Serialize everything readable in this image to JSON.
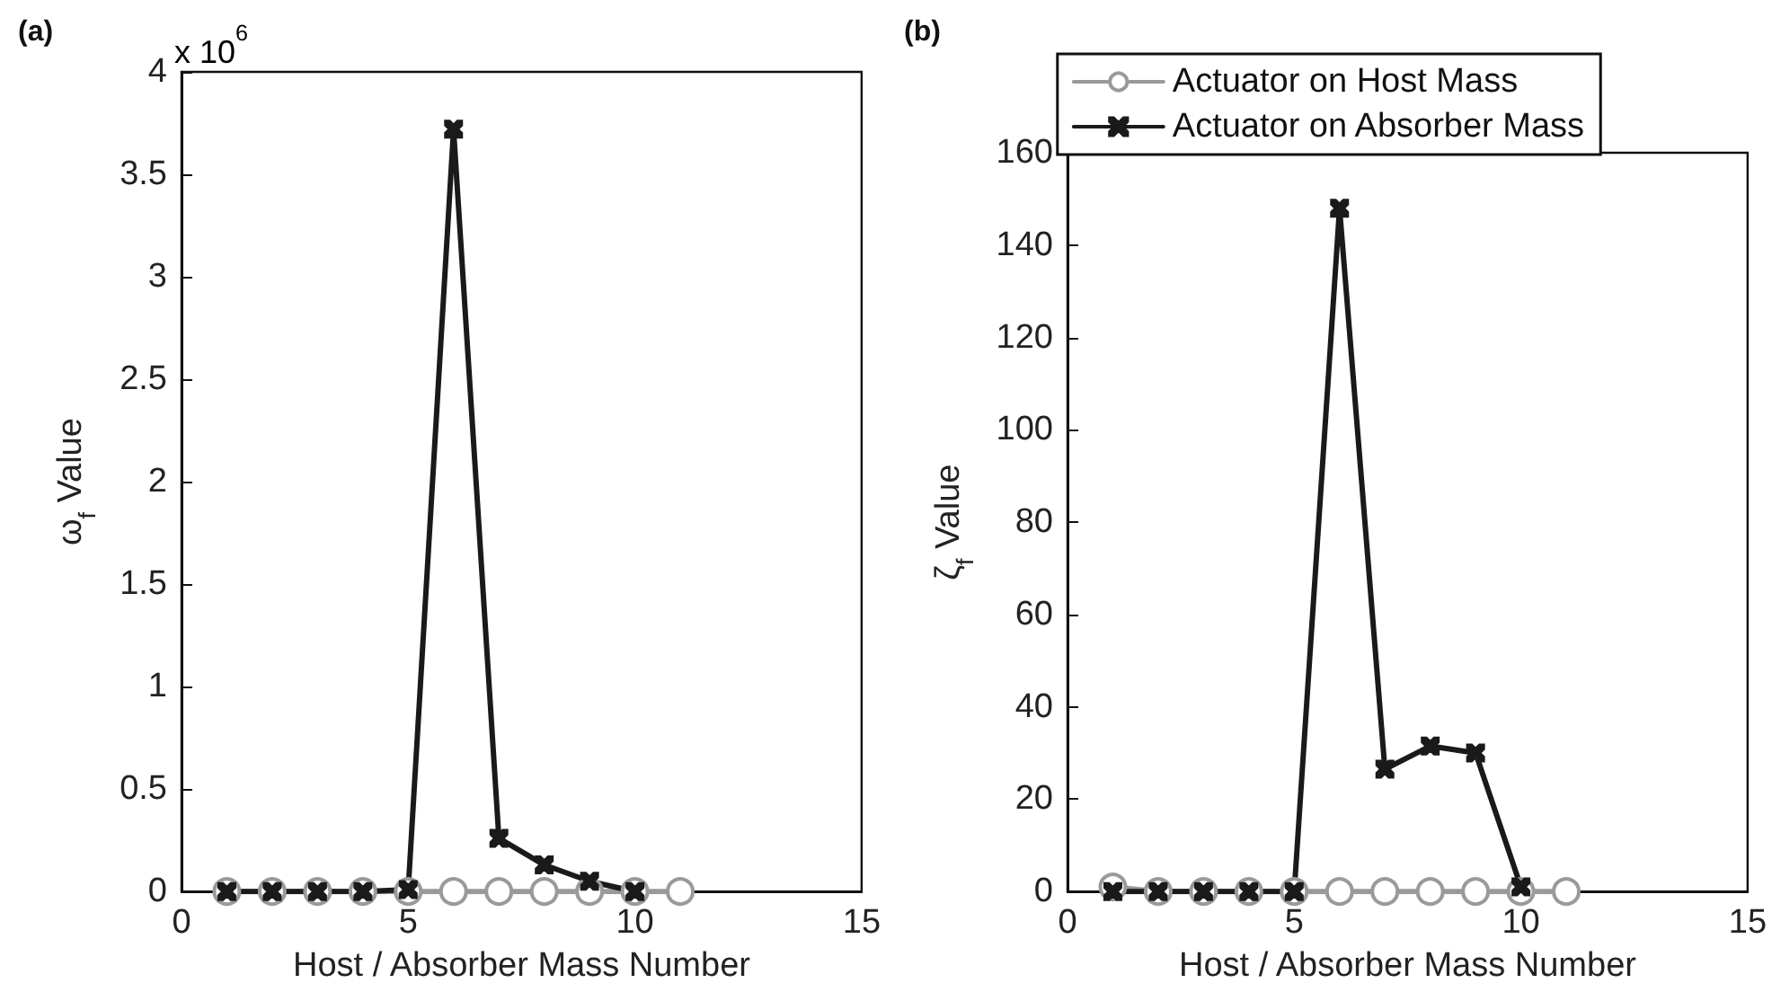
{
  "chart_data": [
    {
      "type": "line",
      "title": "(a)",
      "xlabel": "Host / Absorber Mass Number",
      "ylabel": "ω$_{f}$ Value",
      "annotations": [
        "x 10$^{6}$"
      ],
      "xlim": [
        0,
        15
      ],
      "xticks": [
        0,
        5,
        10,
        15
      ],
      "ylim": [
        0,
        4
      ],
      "yticks": [
        0,
        0.5,
        1,
        1.5,
        2,
        2.5,
        3,
        3.5,
        4
      ],
      "grid": false,
      "legend": false,
      "line_style": "solid",
      "series": [
        {
          "color": "#9a9a9a",
          "marker": "circle",
          "x": [
            1,
            2,
            3,
            4,
            5,
            6,
            7,
            8,
            9,
            10,
            11
          ],
          "values": [
            0,
            0,
            0,
            0,
            0,
            0,
            0,
            0,
            0,
            0,
            0
          ]
        },
        {
          "color": "#1a1a1a",
          "marker": "cross",
          "x": [
            1,
            2,
            3,
            4,
            5,
            6,
            7,
            8,
            9,
            10
          ],
          "values": [
            0,
            0,
            0,
            0,
            0.01,
            3.72,
            0.26,
            0.13,
            0.05,
            0
          ]
        }
      ]
    },
    {
      "type": "line",
      "title": "(b)",
      "xlabel": "Host / Absorber Mass Number",
      "ylabel": "ζ$_{f}$ Value",
      "xlim": [
        0,
        15
      ],
      "xticks": [
        0,
        5,
        10,
        15
      ],
      "ylim": [
        0,
        160
      ],
      "yticks": [
        0,
        20,
        40,
        60,
        80,
        100,
        120,
        140,
        160
      ],
      "grid": false,
      "legend": "top",
      "line_style": "solid",
      "series": [
        {
          "name": "Actuator on Host Mass",
          "color": "#9a9a9a",
          "marker": "circle",
          "x": [
            1,
            2,
            3,
            4,
            5,
            6,
            7,
            8,
            9,
            10,
            11
          ],
          "values": [
            1,
            0,
            0,
            0,
            0,
            0,
            0,
            0,
            0,
            0,
            0
          ]
        },
        {
          "name": "Actuator on Absorber Mass",
          "color": "#1a1a1a",
          "marker": "cross",
          "x": [
            1,
            2,
            3,
            4,
            5,
            6,
            7,
            8,
            9,
            10
          ],
          "values": [
            0,
            0,
            0,
            0,
            0,
            148,
            26.5,
            31.5,
            30,
            1
          ]
        }
      ]
    }
  ]
}
